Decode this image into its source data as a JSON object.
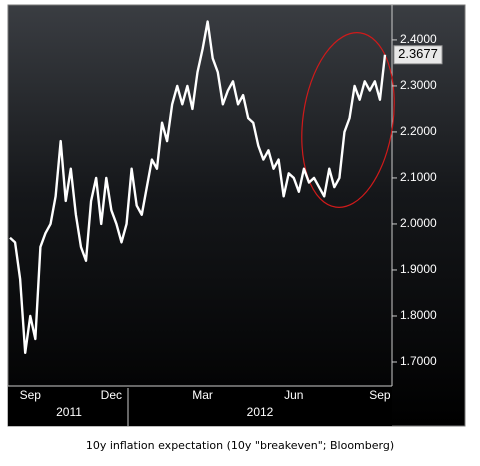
{
  "chart_data": {
    "type": "line",
    "caption": "10y inflation expectation (10y \"breakeven\"; Bloomberg)",
    "categories": [
      null,
      null,
      null,
      null,
      "Sep",
      null,
      null,
      null,
      null,
      null,
      null,
      null,
      null,
      null,
      null,
      null,
      null,
      null,
      null,
      null,
      "Dec",
      null,
      null,
      null,
      null,
      null,
      null,
      null,
      null,
      null,
      null,
      null,
      null,
      null,
      null,
      null,
      null,
      null,
      "Mar",
      null,
      null,
      null,
      null,
      null,
      null,
      null,
      null,
      null,
      null,
      null,
      null,
      null,
      null,
      null,
      null,
      null,
      "Jun",
      null,
      null,
      null,
      null,
      null,
      null,
      null,
      null,
      null,
      null,
      null,
      null,
      null,
      null,
      null,
      null,
      "Sep",
      null
    ],
    "x_groups": [
      "2011",
      "2012"
    ],
    "series": [
      {
        "color": "#ffffff",
        "values": [
          1.97,
          1.96,
          1.88,
          1.72,
          1.8,
          1.75,
          1.95,
          1.98,
          2.0,
          2.06,
          2.18,
          2.05,
          2.12,
          2.02,
          1.95,
          1.92,
          2.05,
          2.1,
          2.0,
          2.1,
          2.03,
          2.0,
          1.96,
          2.0,
          2.12,
          2.04,
          2.02,
          2.08,
          2.14,
          2.12,
          2.22,
          2.18,
          2.26,
          2.3,
          2.26,
          2.3,
          2.25,
          2.33,
          2.38,
          2.44,
          2.36,
          2.33,
          2.26,
          2.29,
          2.31,
          2.26,
          2.28,
          2.23,
          2.22,
          2.17,
          2.14,
          2.16,
          2.12,
          2.14,
          2.06,
          2.11,
          2.1,
          2.07,
          2.12,
          2.09,
          2.1,
          2.08,
          2.06,
          2.12,
          2.08,
          2.1,
          2.2,
          2.23,
          2.3,
          2.27,
          2.31,
          2.29,
          2.31,
          2.27,
          2.3677
        ],
        "last_label": "2.3677"
      }
    ],
    "ylim": [
      1.65,
      2.465
    ],
    "yticks": [
      {
        "value": 1.7,
        "label": "1.7000"
      },
      {
        "value": 1.8,
        "label": "1.8000"
      },
      {
        "value": 1.9,
        "label": "1.9000"
      },
      {
        "value": 2.0,
        "label": "2.0000"
      },
      {
        "value": 2.1,
        "label": "2.1000"
      },
      {
        "value": 2.2,
        "label": "2.2000"
      },
      {
        "value": 2.3,
        "label": "2.3000"
      },
      {
        "value": 2.4,
        "label": "2.4000"
      }
    ],
    "grid": false
  }
}
